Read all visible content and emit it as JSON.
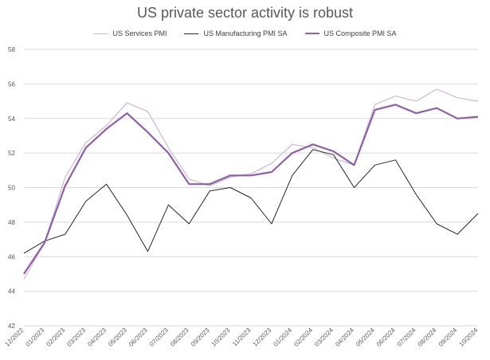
{
  "chart_data": {
    "type": "line",
    "title": "US private sector activity is robust",
    "xlabel": "",
    "ylabel": "",
    "categories": [
      "12/2022",
      "01/2023",
      "02/2023",
      "03/2023",
      "04/2023",
      "05/2023",
      "06/2023",
      "07/2023",
      "08/2023",
      "09/2023",
      "10/2023",
      "11/2023",
      "12/2023",
      "01/2024",
      "02/2024",
      "03/2024",
      "04/2024",
      "05/2024",
      "06/2024",
      "07/2024",
      "08/2024",
      "09/2024",
      "10/2024"
    ],
    "ylim": [
      42,
      58
    ],
    "yticks": [
      "42",
      "44",
      "46",
      "48",
      "50",
      "52",
      "54",
      "56",
      "58"
    ],
    "grid": true,
    "legend_position": "top",
    "series": [
      {
        "name": "US Services PMI",
        "color": "#c9b8d8",
        "width": 1.2,
        "values": [
          44.7,
          46.8,
          50.6,
          52.6,
          53.6,
          54.9,
          54.4,
          52.3,
          50.5,
          50.1,
          50.6,
          50.8,
          51.4,
          52.5,
          52.3,
          51.7,
          51.3,
          54.8,
          55.3,
          55.0,
          55.7,
          55.2,
          55.0
        ]
      },
      {
        "name": "US Manufacturing PMI SA",
        "color": "#262626",
        "width": 1.0,
        "values": [
          46.2,
          46.9,
          47.3,
          49.2,
          50.2,
          48.4,
          46.3,
          49.0,
          47.9,
          49.8,
          50.0,
          49.4,
          47.9,
          50.7,
          52.2,
          51.9,
          50.0,
          51.3,
          51.6,
          49.6,
          47.9,
          47.3,
          48.5
        ]
      },
      {
        "name": "US Composite PMI SA",
        "color": "#8e5fa6",
        "width": 2.2,
        "values": [
          45.0,
          46.8,
          50.1,
          52.3,
          53.4,
          54.3,
          53.2,
          52.0,
          50.2,
          50.2,
          50.7,
          50.7,
          50.9,
          52.0,
          52.5,
          52.1,
          51.3,
          54.5,
          54.8,
          54.3,
          54.6,
          54.0,
          54.1
        ]
      }
    ]
  }
}
